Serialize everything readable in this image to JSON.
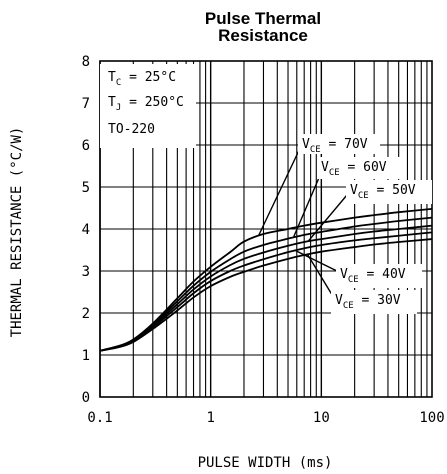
{
  "chart_data": {
    "type": "line",
    "title_lines": [
      "Pulse Thermal",
      "Resistance"
    ],
    "xlabel": "PULSE WIDTH (ms)",
    "ylabel": "THERMAL RESISTANCE (°C/W)",
    "xscale": "log",
    "xlim": [
      0.1,
      100
    ],
    "ylim": [
      0,
      8
    ],
    "x_ticks": [
      0.1,
      1,
      10,
      100
    ],
    "x_tick_labels": [
      "0.1",
      "1",
      "10",
      "100"
    ],
    "y_ticks": [
      0,
      1,
      2,
      3,
      4,
      5,
      6,
      7,
      8
    ],
    "y_tick_labels": [
      "0",
      "1",
      "2",
      "3",
      "4",
      "5",
      "6",
      "7",
      "8"
    ],
    "grid": true,
    "conditions": {
      "tc": {
        "symbol": "T",
        "sub": "C",
        "value": " = 25°C"
      },
      "tj": {
        "symbol": "T",
        "sub": "J",
        "value": " = 250°C"
      },
      "package": "TO-220"
    },
    "series": [
      {
        "name": "VCE = 70V",
        "label": {
          "pre": "V",
          "sub": "CE",
          "post": " = 70V"
        },
        "x": [
          0.1,
          0.15,
          0.2,
          0.3,
          0.5,
          0.7,
          1,
          1.5,
          2,
          3,
          5,
          7,
          10,
          20,
          30,
          50,
          100
        ],
        "y": [
          1.1,
          1.22,
          1.37,
          1.75,
          2.35,
          2.75,
          3.1,
          3.45,
          3.7,
          3.88,
          4.0,
          4.08,
          4.15,
          4.27,
          4.33,
          4.4,
          4.48
        ]
      },
      {
        "name": "VCE = 60V",
        "label": {
          "pre": "V",
          "sub": "CE",
          "post": " = 60V"
        },
        "x": [
          0.1,
          0.15,
          0.2,
          0.3,
          0.5,
          0.7,
          1,
          1.5,
          2,
          3,
          5,
          7,
          10,
          20,
          30,
          50,
          100
        ],
        "y": [
          1.1,
          1.22,
          1.35,
          1.72,
          2.28,
          2.65,
          2.98,
          3.28,
          3.46,
          3.62,
          3.77,
          3.86,
          3.93,
          4.06,
          4.12,
          4.19,
          4.27
        ]
      },
      {
        "name": "VCE = 50V",
        "label": {
          "pre": "V",
          "sub": "CE",
          "post": " = 50V"
        },
        "x": [
          0.1,
          0.15,
          0.2,
          0.3,
          0.5,
          0.7,
          1,
          1.5,
          2,
          3,
          5,
          7,
          10,
          20,
          30,
          50,
          100
        ],
        "y": [
          1.1,
          1.21,
          1.34,
          1.69,
          2.21,
          2.56,
          2.87,
          3.14,
          3.29,
          3.44,
          3.6,
          3.69,
          3.76,
          3.88,
          3.94,
          4.0,
          4.08
        ]
      },
      {
        "name": "VCE = 40V",
        "label": {
          "pre": "V",
          "sub": "CE",
          "post": " = 40V"
        },
        "x": [
          0.1,
          0.15,
          0.2,
          0.3,
          0.5,
          0.7,
          1,
          1.5,
          2,
          3,
          5,
          7,
          10,
          20,
          30,
          50,
          100
        ],
        "y": [
          1.1,
          1.2,
          1.33,
          1.66,
          2.14,
          2.47,
          2.76,
          3.0,
          3.13,
          3.28,
          3.45,
          3.54,
          3.62,
          3.73,
          3.78,
          3.84,
          3.92
        ]
      },
      {
        "name": "VCE = 30V",
        "label": {
          "pre": "V",
          "sub": "CE",
          "post": " = 30V"
        },
        "x": [
          0.1,
          0.15,
          0.2,
          0.3,
          0.5,
          0.7,
          1,
          1.5,
          2,
          3,
          5,
          7,
          10,
          20,
          30,
          50,
          100
        ],
        "y": [
          1.1,
          1.19,
          1.31,
          1.62,
          2.06,
          2.37,
          2.64,
          2.86,
          2.98,
          3.13,
          3.29,
          3.38,
          3.46,
          3.57,
          3.63,
          3.69,
          3.76
        ]
      }
    ]
  }
}
